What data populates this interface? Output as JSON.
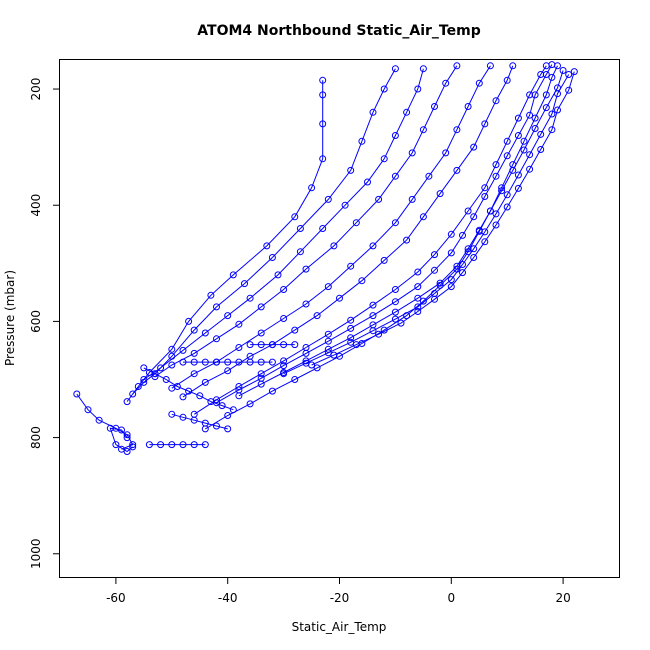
{
  "chart_data": {
    "type": "line",
    "title": "ATOM4 Northbound Static_Air_Temp",
    "xlabel": "Static_Air_Temp",
    "ylabel": "Pressure (mbar)",
    "xlim": [
      -70,
      30
    ],
    "ylim": [
      1040,
      150
    ],
    "y_reversed": true,
    "grid": false,
    "marker": "open-circle",
    "color": "#0000ff",
    "x_ticks": [
      -60,
      -40,
      -20,
      0,
      20
    ],
    "y_ticks": [
      200,
      400,
      600,
      800,
      1000
    ],
    "series": [
      {
        "values": [
          [
            -67,
            725
          ],
          [
            -65,
            752
          ],
          [
            -63,
            770
          ],
          [
            -60,
            784
          ],
          [
            -58,
            795
          ],
          [
            -57,
            812
          ],
          [
            -59,
            820
          ]
        ]
      },
      {
        "values": [
          [
            -58,
            738
          ],
          [
            -56,
            712
          ],
          [
            -54,
            688
          ],
          [
            -50,
            648
          ],
          [
            -47,
            600
          ],
          [
            -43,
            555
          ],
          [
            -39,
            520
          ],
          [
            -33,
            470
          ],
          [
            -28,
            420
          ],
          [
            -25,
            370
          ],
          [
            -23,
            320
          ],
          [
            -23,
            260
          ],
          [
            -23,
            210
          ],
          [
            -23,
            185
          ]
        ]
      },
      {
        "values": [
          [
            -57,
            725
          ],
          [
            -55,
            705
          ],
          [
            -53,
            690
          ],
          [
            -50,
            660
          ],
          [
            -46,
            615
          ],
          [
            -42,
            575
          ],
          [
            -37,
            535
          ],
          [
            -32,
            490
          ],
          [
            -27,
            440
          ],
          [
            -22,
            390
          ],
          [
            -18,
            340
          ],
          [
            -16,
            290
          ],
          [
            -14,
            240
          ],
          [
            -12,
            200
          ],
          [
            -10,
            165
          ]
        ]
      },
      {
        "values": [
          [
            -55,
            700
          ],
          [
            -52,
            680
          ],
          [
            -48,
            650
          ],
          [
            -44,
            620
          ],
          [
            -40,
            590
          ],
          [
            -36,
            560
          ],
          [
            -31,
            520
          ],
          [
            -27,
            480
          ],
          [
            -23,
            440
          ],
          [
            -19,
            400
          ],
          [
            -15,
            360
          ],
          [
            -12,
            320
          ],
          [
            -10,
            280
          ],
          [
            -8,
            240
          ],
          [
            -6,
            200
          ],
          [
            -5,
            165
          ]
        ]
      },
      {
        "values": [
          [
            -53,
            695
          ],
          [
            -50,
            675
          ],
          [
            -46,
            655
          ],
          [
            -42,
            630
          ],
          [
            -38,
            605
          ],
          [
            -34,
            575
          ],
          [
            -30,
            545
          ],
          [
            -26,
            510
          ],
          [
            -21,
            470
          ],
          [
            -17,
            430
          ],
          [
            -13,
            390
          ],
          [
            -10,
            350
          ],
          [
            -7,
            310
          ],
          [
            -5,
            270
          ],
          [
            -3,
            230
          ],
          [
            -1,
            190
          ],
          [
            1,
            160
          ]
        ]
      },
      {
        "values": [
          [
            -50,
            715
          ],
          [
            -46,
            690
          ],
          [
            -42,
            670
          ],
          [
            -38,
            645
          ],
          [
            -34,
            620
          ],
          [
            -30,
            595
          ],
          [
            -26,
            570
          ],
          [
            -22,
            540
          ],
          [
            -18,
            505
          ],
          [
            -14,
            470
          ],
          [
            -10,
            430
          ],
          [
            -7,
            390
          ],
          [
            -4,
            350
          ],
          [
            -1,
            310
          ],
          [
            1,
            270
          ],
          [
            3,
            230
          ],
          [
            5,
            190
          ],
          [
            7,
            160
          ]
        ]
      },
      {
        "values": [
          [
            -48,
            730
          ],
          [
            -44,
            705
          ],
          [
            -40,
            685
          ],
          [
            -36,
            660
          ],
          [
            -32,
            640
          ],
          [
            -28,
            615
          ],
          [
            -24,
            590
          ],
          [
            -20,
            560
          ],
          [
            -16,
            530
          ],
          [
            -12,
            495
          ],
          [
            -8,
            460
          ],
          [
            -5,
            420
          ],
          [
            -2,
            380
          ],
          [
            1,
            340
          ],
          [
            4,
            300
          ],
          [
            6,
            260
          ],
          [
            8,
            220
          ],
          [
            10,
            185
          ],
          [
            11,
            160
          ]
        ]
      },
      {
        "values": [
          [
            -46,
            760
          ],
          [
            -42,
            735
          ],
          [
            -38,
            712
          ],
          [
            -34,
            690
          ],
          [
            -30,
            668
          ],
          [
            -26,
            645
          ],
          [
            -22,
            622
          ],
          [
            -18,
            598
          ],
          [
            -14,
            572
          ],
          [
            -10,
            545
          ],
          [
            -6,
            515
          ],
          [
            -3,
            485
          ],
          [
            0,
            450
          ],
          [
            3,
            410
          ],
          [
            6,
            370
          ],
          [
            8,
            330
          ],
          [
            10,
            290
          ],
          [
            12,
            250
          ],
          [
            14,
            210
          ],
          [
            16,
            175
          ],
          [
            17,
            160
          ]
        ]
      },
      {
        "values": [
          [
            -44,
            785
          ],
          [
            -40,
            762
          ],
          [
            -36,
            742
          ],
          [
            -32,
            720
          ],
          [
            -28,
            700
          ],
          [
            -24,
            680
          ],
          [
            -20,
            660
          ],
          [
            -16,
            638
          ],
          [
            -12,
            615
          ],
          [
            -8,
            590
          ],
          [
            -5,
            565
          ],
          [
            -2,
            538
          ],
          [
            1,
            510
          ],
          [
            3,
            480
          ],
          [
            5,
            445
          ],
          [
            7,
            410
          ],
          [
            9,
            370
          ],
          [
            11,
            330
          ],
          [
            13,
            290
          ],
          [
            15,
            250
          ],
          [
            17,
            210
          ],
          [
            18,
            180
          ],
          [
            19,
            160
          ]
        ]
      },
      {
        "values": [
          [
            -42,
            740
          ],
          [
            -38,
            718
          ],
          [
            -34,
            698
          ],
          [
            -30,
            676
          ],
          [
            -26,
            655
          ],
          [
            -22,
            634
          ],
          [
            -18,
            612
          ],
          [
            -14,
            590
          ],
          [
            -10,
            566
          ],
          [
            -6,
            540
          ],
          [
            -3,
            512
          ],
          [
            0,
            482
          ],
          [
            2,
            452
          ],
          [
            4,
            420
          ],
          [
            6,
            385
          ],
          [
            8,
            350
          ],
          [
            10,
            315
          ],
          [
            12,
            280
          ],
          [
            14,
            245
          ],
          [
            15,
            210
          ],
          [
            17,
            175
          ],
          [
            18,
            158
          ]
        ]
      },
      {
        "values": [
          [
            -38,
            728
          ],
          [
            -34,
            708
          ],
          [
            -30,
            688
          ],
          [
            -26,
            668
          ],
          [
            -22,
            648
          ],
          [
            -18,
            628
          ],
          [
            -14,
            606
          ],
          [
            -10,
            584
          ],
          [
            -6,
            560
          ],
          [
            -2,
            534
          ],
          [
            1,
            505
          ],
          [
            3,
            475
          ],
          [
            5,
            443
          ],
          [
            7,
            410
          ],
          [
            9,
            375
          ],
          [
            11,
            340
          ],
          [
            13,
            305
          ],
          [
            15,
            268
          ],
          [
            17,
            232
          ],
          [
            19,
            198
          ],
          [
            20,
            168
          ]
        ]
      },
      {
        "values": [
          [
            -30,
            690
          ],
          [
            -26,
            672
          ],
          [
            -22,
            654
          ],
          [
            -18,
            636
          ],
          [
            -14,
            616
          ],
          [
            -10,
            596
          ],
          [
            -6,
            575
          ],
          [
            -3,
            552
          ],
          [
            0,
            528
          ],
          [
            2,
            502
          ],
          [
            4,
            475
          ],
          [
            6,
            446
          ],
          [
            8,
            415
          ],
          [
            10,
            382
          ],
          [
            12,
            348
          ],
          [
            14,
            313
          ],
          [
            16,
            278
          ],
          [
            18,
            243
          ],
          [
            19,
            208
          ],
          [
            21,
            175
          ]
        ]
      },
      {
        "values": [
          [
            -25,
            675
          ],
          [
            -21,
            658
          ],
          [
            -17,
            640
          ],
          [
            -13,
            622
          ],
          [
            -9,
            603
          ],
          [
            -6,
            583
          ],
          [
            -3,
            562
          ],
          [
            0,
            540
          ],
          [
            2,
            516
          ],
          [
            4,
            490
          ],
          [
            6,
            463
          ],
          [
            8,
            434
          ],
          [
            10,
            403
          ],
          [
            12,
            371
          ],
          [
            14,
            338
          ],
          [
            16,
            304
          ],
          [
            18,
            270
          ],
          [
            19,
            236
          ],
          [
            21,
            202
          ],
          [
            22,
            170
          ]
        ]
      },
      {
        "values": [
          [
            -55,
            680
          ],
          [
            -53,
            690
          ],
          [
            -51,
            700
          ],
          [
            -49,
            712
          ],
          [
            -47,
            720
          ],
          [
            -45,
            728
          ],
          [
            -43,
            738
          ],
          [
            -41,
            745
          ],
          [
            -39,
            752
          ]
        ]
      },
      {
        "values": [
          [
            -50,
            760
          ],
          [
            -48,
            765
          ],
          [
            -46,
            770
          ],
          [
            -44,
            775
          ],
          [
            -42,
            780
          ],
          [
            -40,
            785
          ]
        ]
      },
      {
        "values": [
          [
            -54,
            812
          ],
          [
            -52,
            812
          ],
          [
            -50,
            812
          ],
          [
            -48,
            812
          ],
          [
            -46,
            812
          ],
          [
            -44,
            812
          ]
        ]
      },
      {
        "values": [
          [
            -36,
            640
          ],
          [
            -34,
            640
          ],
          [
            -32,
            640
          ],
          [
            -30,
            640
          ],
          [
            -28,
            640
          ]
        ]
      },
      {
        "values": [
          [
            -48,
            670
          ],
          [
            -46,
            670
          ],
          [
            -44,
            670
          ],
          [
            -42,
            670
          ],
          [
            -40,
            670
          ],
          [
            -38,
            670
          ],
          [
            -36,
            670
          ],
          [
            -34,
            670
          ],
          [
            -32,
            670
          ]
        ]
      },
      {
        "values": [
          [
            -58,
            800
          ],
          [
            -59,
            787
          ],
          [
            -61,
            784
          ],
          [
            -60,
            812
          ],
          [
            -58,
            824
          ],
          [
            -57,
            816
          ]
        ]
      }
    ]
  }
}
